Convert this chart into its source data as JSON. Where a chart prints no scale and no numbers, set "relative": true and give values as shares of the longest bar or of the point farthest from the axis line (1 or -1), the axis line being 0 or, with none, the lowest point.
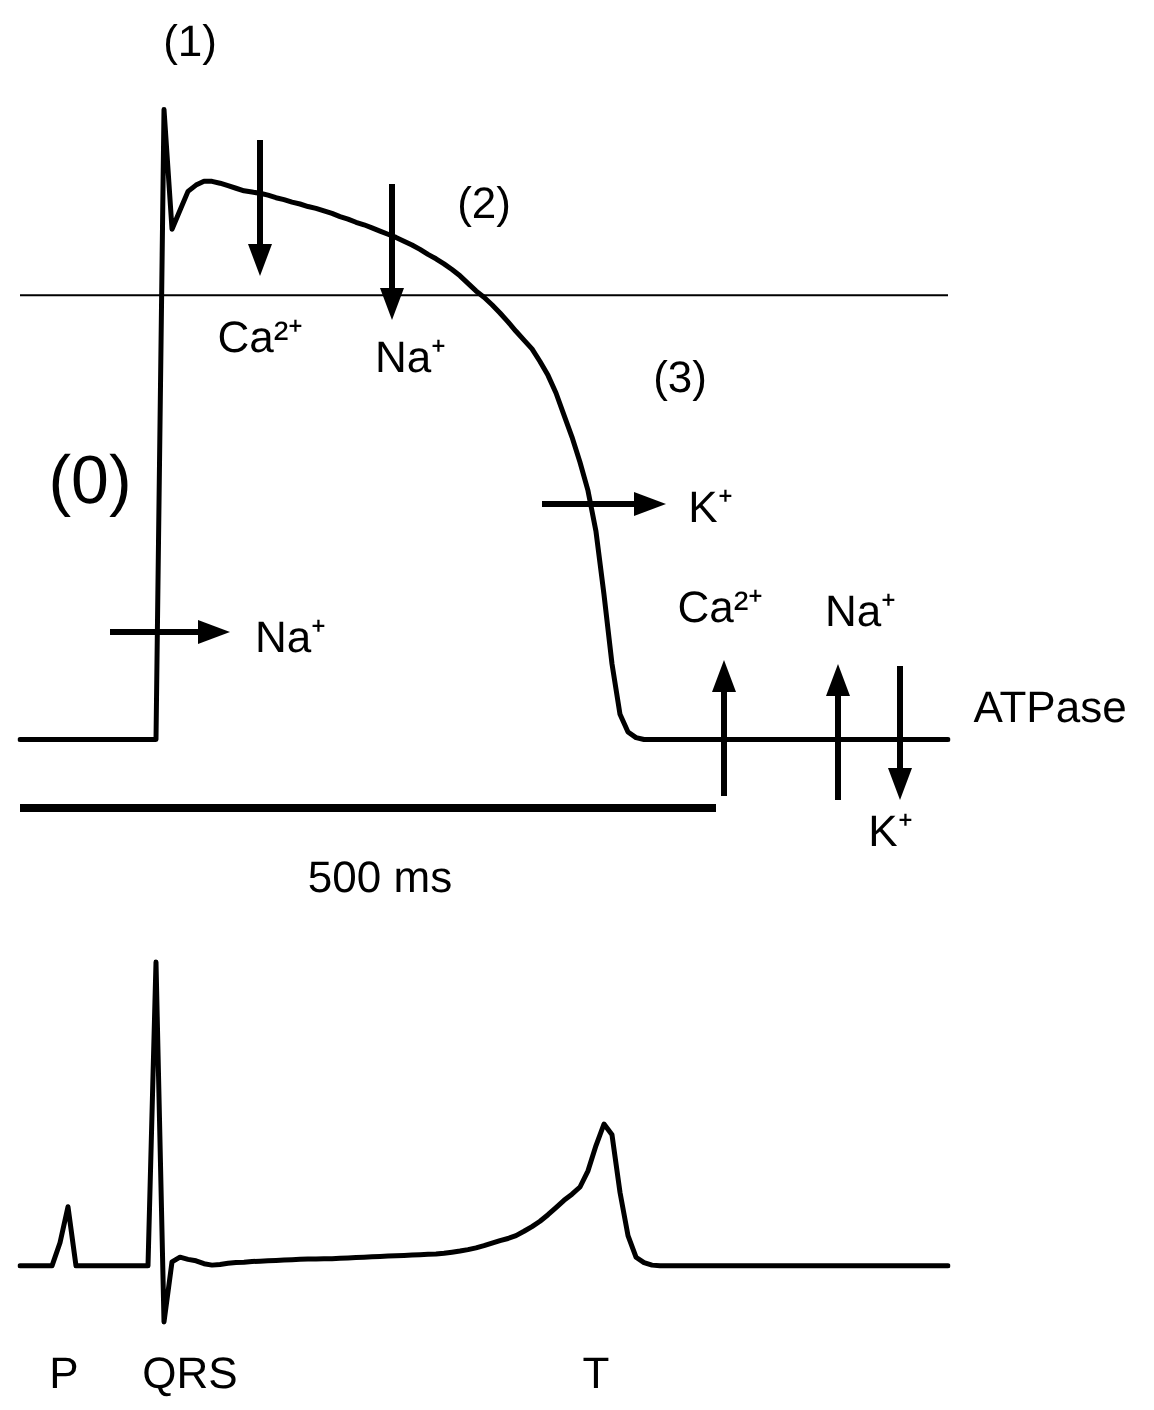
{
  "chart_data": [
    {
      "type": "line",
      "relative": true,
      "marker": "none",
      "line_style": "solid",
      "grid": false,
      "categories": [
        null,
        null,
        null,
        null,
        null,
        null,
        null,
        null,
        null,
        null,
        null,
        null,
        null,
        null,
        null,
        null,
        null,
        null,
        null,
        null,
        null,
        null,
        null,
        null,
        null,
        null,
        null,
        null,
        null,
        null,
        null,
        null,
        null,
        null,
        null,
        null,
        null,
        null,
        null,
        null,
        null,
        null,
        null,
        null,
        null,
        null,
        null,
        null,
        null,
        null,
        null,
        null,
        null,
        null,
        null,
        null,
        null,
        null,
        null,
        null,
        null,
        null,
        null,
        null,
        null,
        null,
        null,
        null,
        null,
        null,
        null,
        null,
        null,
        null,
        null,
        null,
        null,
        null,
        null,
        null,
        null,
        null,
        null,
        null,
        null,
        null,
        null,
        null,
        null,
        null,
        null,
        null,
        null,
        null,
        null,
        null,
        null,
        null,
        null,
        null,
        null,
        null,
        null,
        null,
        null,
        null,
        null,
        null,
        null,
        null,
        null,
        null,
        null,
        null,
        null,
        null,
        null
      ],
      "series": [
        {
          "color": "#000000",
          "values": [
            0,
            0,
            0,
            0,
            0,
            0,
            0,
            0,
            0,
            0,
            0,
            0,
            0,
            0,
            0,
            0,
            0,
            0,
            1,
            0.81,
            0.84,
            0.87,
            0.88,
            0.886,
            0.886,
            0.883,
            0.879,
            0.875,
            0.871,
            0.869,
            0.867,
            0.864,
            0.86,
            0.857,
            0.853,
            0.85,
            0.846,
            0.843,
            0.839,
            0.835,
            0.83,
            0.826,
            0.821,
            0.817,
            0.812,
            0.807,
            0.802,
            0.797,
            0.791,
            0.785,
            0.778,
            0.77,
            0.763,
            0.755,
            0.746,
            0.736,
            0.724,
            0.712,
            0.702,
            0.69,
            0.677,
            0.663,
            0.648,
            0.634,
            0.62,
            0.6,
            0.578,
            0.55,
            0.515,
            0.48,
            0.44,
            0.395,
            0.33,
            0.23,
            0.12,
            0.04,
            0.012,
            0.003,
            0,
            0,
            0,
            0,
            0,
            0,
            0,
            0,
            0,
            0,
            0,
            0,
            0,
            0,
            0,
            0,
            0,
            0,
            0,
            0,
            0,
            0,
            0,
            0,
            0,
            0,
            0,
            0,
            0,
            0,
            0,
            0,
            0,
            0,
            0,
            0,
            0,
            0,
            0
          ]
        }
      ],
      "ref_lines": [
        {
          "axis": "y",
          "value": 0.705,
          "color": "#000000"
        }
      ],
      "annotations": [
        "(1)",
        "(2)",
        "(3)",
        "(0)",
        "Ca²⁺",
        "Na⁺",
        "K⁺",
        "Na⁺",
        "Ca²⁺",
        "Na⁺",
        "ATPase",
        "K⁺",
        "500 ms"
      ]
    },
    {
      "type": "line",
      "relative": true,
      "marker": "none",
      "line_style": "solid",
      "grid": false,
      "categories": [
        null,
        null,
        null,
        null,
        null,
        null,
        null,
        null,
        null,
        null,
        null,
        null,
        null,
        null,
        null,
        null,
        null,
        null,
        null,
        null,
        null,
        null,
        null,
        null,
        null,
        null,
        null,
        null,
        null,
        null,
        null,
        null,
        null,
        null,
        null,
        null,
        null,
        null,
        null,
        null,
        null,
        null,
        null,
        null,
        null,
        null,
        null,
        null,
        null,
        null,
        null,
        null,
        null,
        null,
        null,
        null,
        null,
        null,
        null,
        null,
        null,
        null,
        null,
        null,
        null,
        null,
        null,
        null,
        null,
        null,
        null,
        null,
        null,
        null,
        null,
        null,
        null,
        null,
        null,
        null,
        null,
        null,
        null,
        null,
        null,
        null,
        null,
        null,
        null,
        null,
        null,
        null,
        null,
        null,
        null,
        null,
        null,
        null,
        null,
        null,
        null,
        null,
        null,
        null,
        null,
        null,
        null,
        null,
        null,
        null,
        null,
        null,
        null,
        null,
        null,
        null,
        null
      ],
      "series": [
        {
          "color": "#000000",
          "values": [
            0.156,
            0.156,
            0.156,
            0.156,
            0.156,
            0.22,
            0.32,
            0.156,
            0.156,
            0.156,
            0.156,
            0.156,
            0.156,
            0.156,
            0.156,
            0.156,
            0.156,
            1,
            0,
            0.167,
            0.18,
            0.174,
            0.17,
            0.162,
            0.158,
            0.16,
            0.163,
            0.165,
            0.166,
            0.168,
            0.169,
            0.17,
            0.171,
            0.172,
            0.173,
            0.174,
            0.175,
            0.175,
            0.176,
            0.176,
            0.177,
            0.178,
            0.179,
            0.18,
            0.181,
            0.182,
            0.183,
            0.184,
            0.185,
            0.186,
            0.187,
            0.188,
            0.189,
            0.191,
            0.194,
            0.197,
            0.201,
            0.206,
            0.212,
            0.219,
            0.226,
            0.232,
            0.24,
            0.252,
            0.265,
            0.28,
            0.298,
            0.318,
            0.338,
            0.355,
            0.375,
            0.42,
            0.49,
            0.55,
            0.52,
            0.36,
            0.24,
            0.18,
            0.165,
            0.158,
            0.156,
            0.156,
            0.156,
            0.156,
            0.156,
            0.156,
            0.156,
            0.156,
            0.156,
            0.156,
            0.156,
            0.156,
            0.156,
            0.156,
            0.156,
            0.156,
            0.156,
            0.156,
            0.156,
            0.156,
            0.156,
            0.156,
            0.156,
            0.156,
            0.156,
            0.156,
            0.156,
            0.156,
            0.156,
            0.156,
            0.156,
            0.156,
            0.156,
            0.156,
            0.156,
            0.156,
            0.156
          ]
        }
      ],
      "annotations": [
        "P",
        "QRS",
        "T"
      ]
    }
  ]
}
